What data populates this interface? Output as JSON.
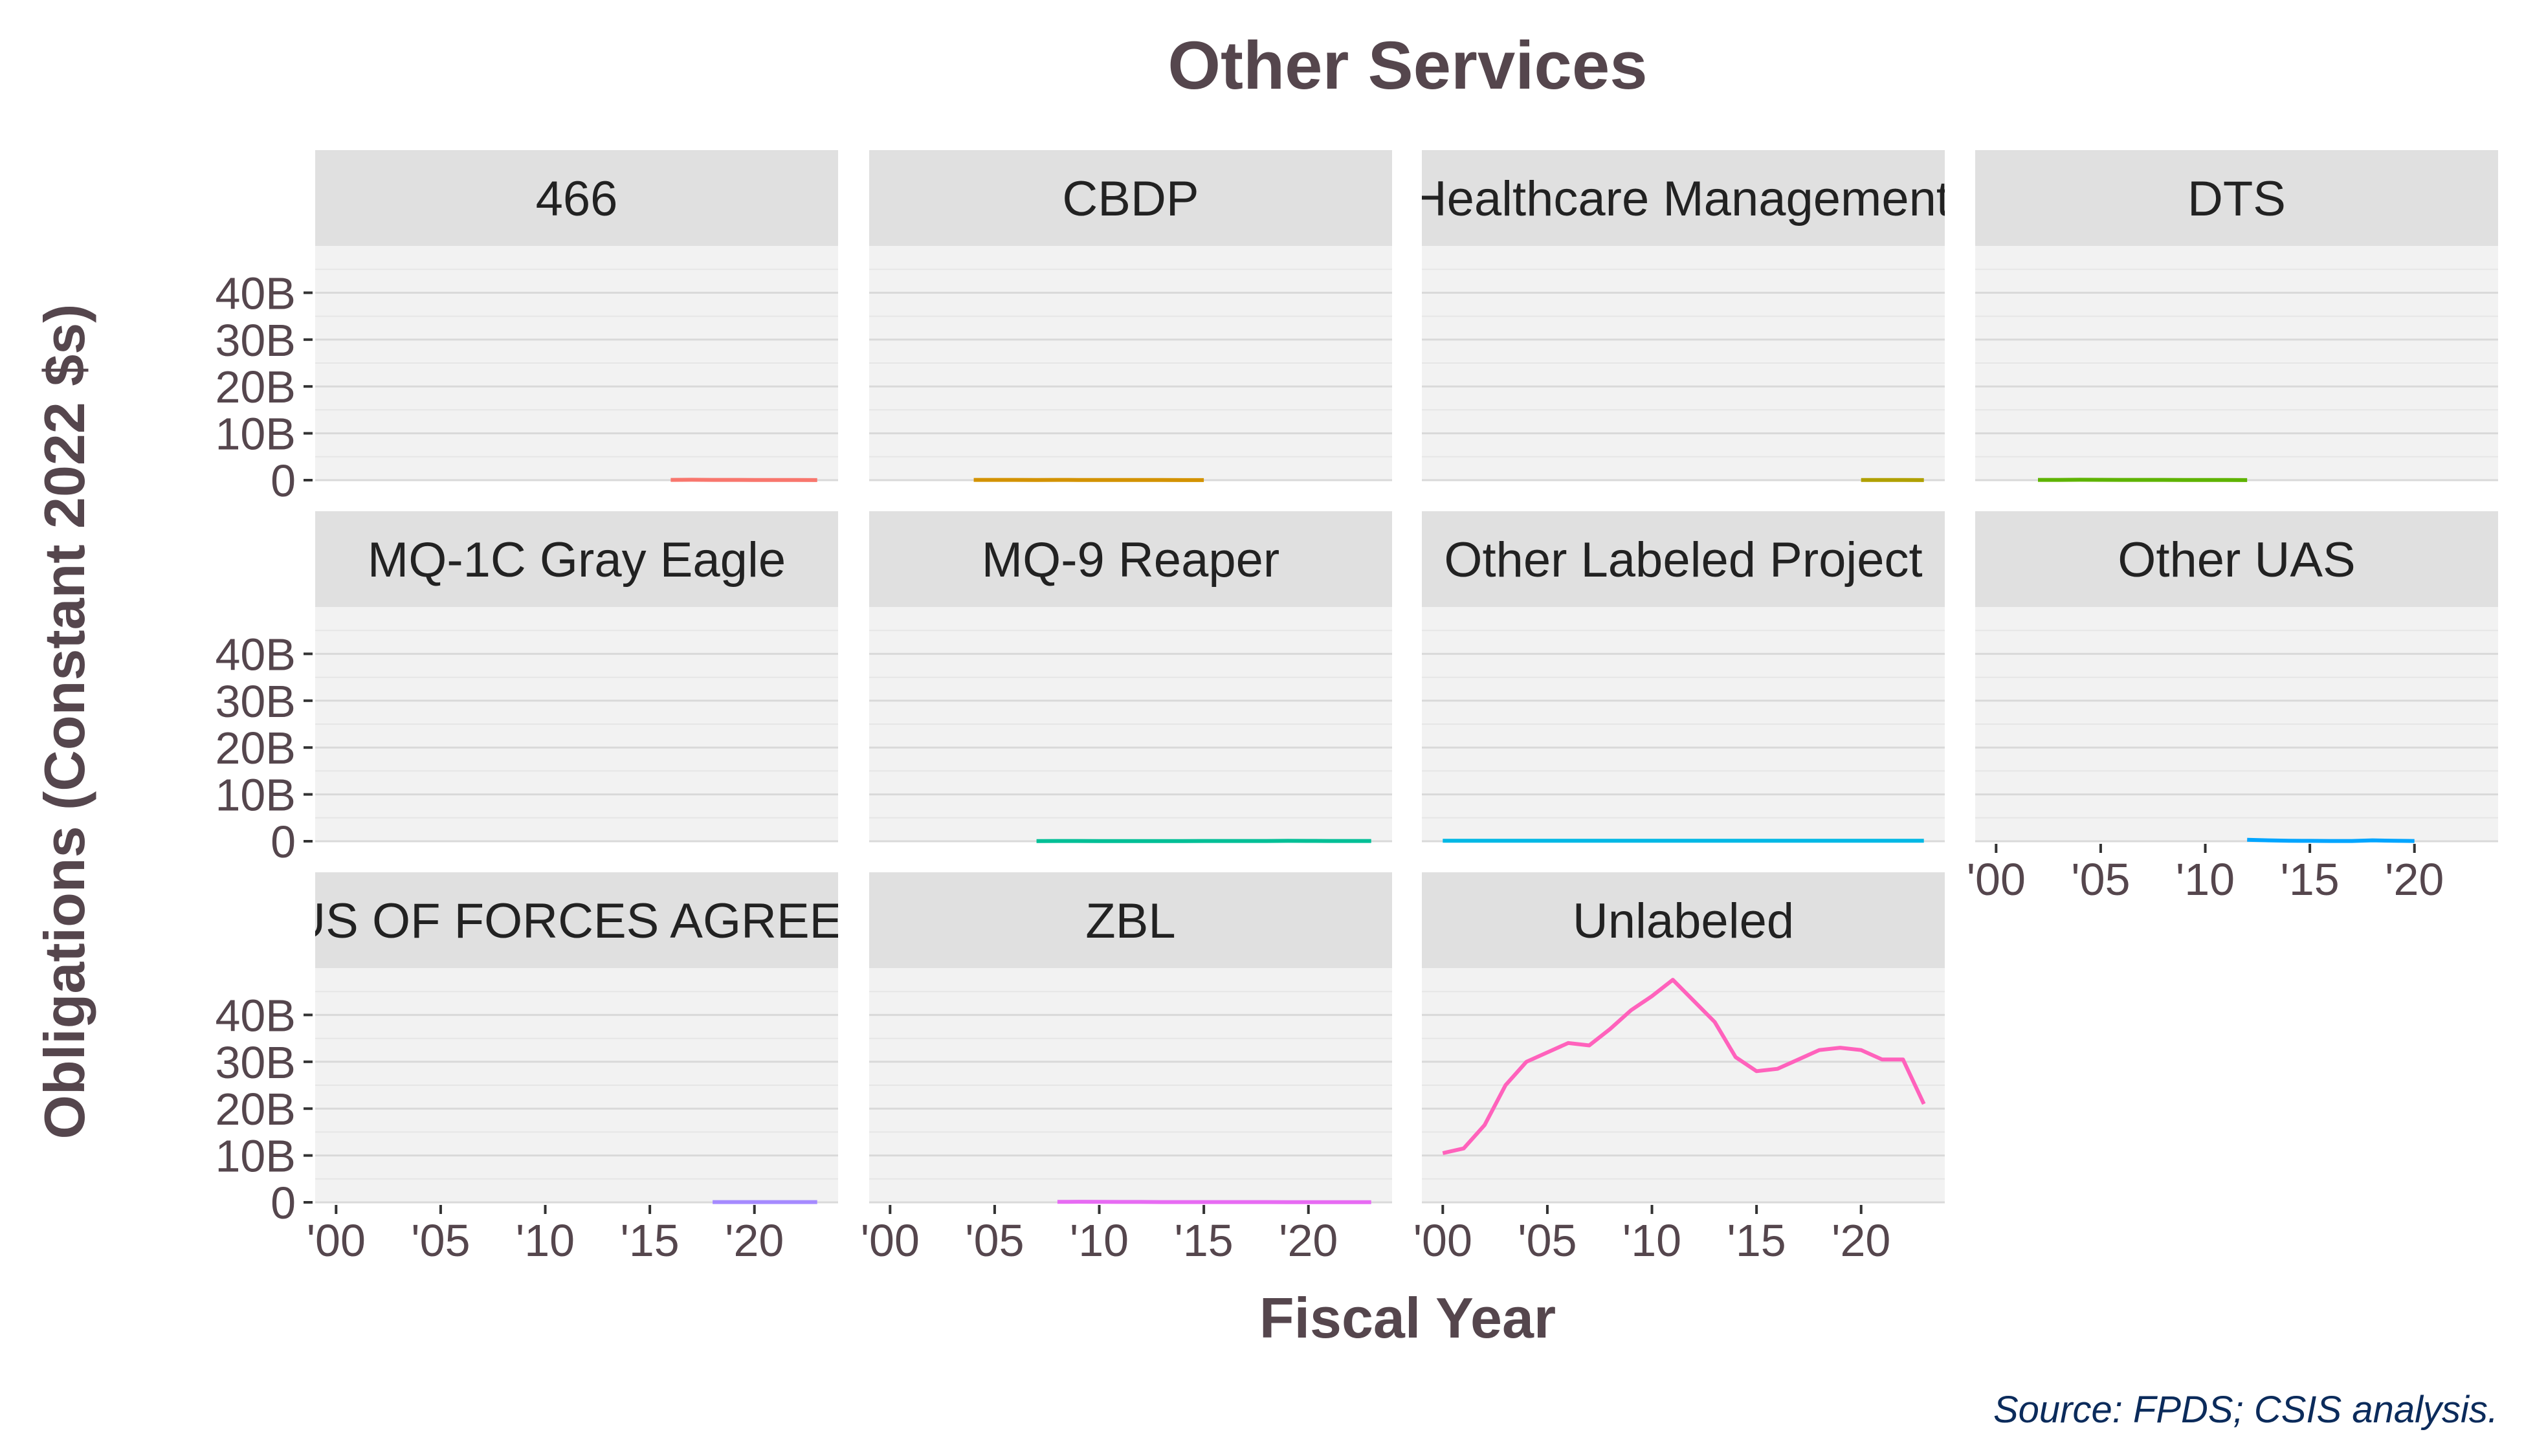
{
  "chart_data": {
    "type": "line",
    "title": "Other Services",
    "xlabel": "Fiscal Year",
    "ylabel": "Obligations (Constant 2022 $s)",
    "caption": "Source: FPDS; CSIS analysis.",
    "xlim": [
      1999,
      2024
    ],
    "ylim": [
      0,
      50
    ],
    "y_ticks": [
      0,
      10,
      20,
      30,
      40
    ],
    "y_tick_labels": [
      "0",
      "10B",
      "20B",
      "30B",
      "40B"
    ],
    "x_ticks": [
      2000,
      2005,
      2010,
      2015,
      2020
    ],
    "x_tick_labels": [
      "'00",
      "'05",
      "'10",
      "'15",
      "'20"
    ],
    "units": "billions of constant 2022 dollars",
    "panels": [
      {
        "label": "466",
        "color": "#f8766d",
        "x": [
          2016,
          2017,
          2018,
          2019,
          2020,
          2021,
          2022,
          2023
        ],
        "values": [
          0.05,
          0.08,
          0.06,
          0.05,
          0.04,
          0.03,
          0.03,
          0.02
        ]
      },
      {
        "label": "CBDP",
        "color": "#d39200",
        "x": [
          2004,
          2005,
          2006,
          2007,
          2008,
          2009,
          2010,
          2011,
          2012,
          2013,
          2014,
          2015
        ],
        "values": [
          0.05,
          0.06,
          0.05,
          0.04,
          0.05,
          0.04,
          0.04,
          0.03,
          0.03,
          0.03,
          0.02,
          0.02
        ]
      },
      {
        "label": "Defense Healthcare Management Systems",
        "color": "#b0a000",
        "x": [
          2020,
          2021,
          2022,
          2023
        ],
        "values": [
          0.03,
          0.03,
          0.03,
          0.02
        ]
      },
      {
        "label": "DTS",
        "color": "#5eb300",
        "x": [
          2002,
          2003,
          2004,
          2005,
          2006,
          2007,
          2008,
          2009,
          2010,
          2011,
          2012
        ],
        "values": [
          0.05,
          0.06,
          0.08,
          0.07,
          0.06,
          0.05,
          0.05,
          0.04,
          0.04,
          0.03,
          0.02
        ]
      },
      {
        "label": "MQ-1C Gray Eagle",
        "color": "#00ba38",
        "x": [],
        "values": []
      },
      {
        "label": "MQ-9 Reaper",
        "color": "#00bf96",
        "x": [
          2007,
          2008,
          2009,
          2010,
          2011,
          2012,
          2013,
          2014,
          2015,
          2016,
          2017,
          2018,
          2019,
          2020,
          2021,
          2022,
          2023
        ],
        "values": [
          0.04,
          0.05,
          0.05,
          0.04,
          0.04,
          0.04,
          0.04,
          0.04,
          0.05,
          0.05,
          0.05,
          0.06,
          0.08,
          0.07,
          0.06,
          0.05,
          0.05
        ]
      },
      {
        "label": "Other Labeled Project",
        "color": "#00b8e5",
        "x": [
          2000,
          2001,
          2002,
          2003,
          2004,
          2005,
          2006,
          2007,
          2008,
          2009,
          2010,
          2011,
          2012,
          2013,
          2014,
          2015,
          2016,
          2017,
          2018,
          2019,
          2020,
          2021,
          2022,
          2023
        ],
        "values": [
          0.1,
          0.1,
          0.1,
          0.1,
          0.1,
          0.1,
          0.1,
          0.1,
          0.1,
          0.1,
          0.1,
          0.1,
          0.1,
          0.1,
          0.1,
          0.1,
          0.1,
          0.1,
          0.1,
          0.1,
          0.1,
          0.1,
          0.1,
          0.1
        ]
      },
      {
        "label": "Other UAS",
        "color": "#00a5ff",
        "x": [
          2012,
          2013,
          2014,
          2015,
          2016,
          2017,
          2018,
          2019,
          2020
        ],
        "values": [
          0.3,
          0.2,
          0.1,
          0.08,
          0.06,
          0.06,
          0.2,
          0.1,
          0.05
        ]
      },
      {
        "label": "STATUS OF FORCES AGREEMENT",
        "color": "#a58aff",
        "x": [
          2018,
          2019,
          2020,
          2021,
          2022,
          2023
        ],
        "values": [
          0.05,
          0.05,
          0.05,
          0.05,
          0.05,
          0.05
        ]
      },
      {
        "label": "ZBL",
        "color": "#e76bf3",
        "x": [
          2008,
          2009,
          2010,
          2011,
          2012,
          2013,
          2014,
          2015,
          2016,
          2017,
          2018,
          2019,
          2020,
          2021,
          2022,
          2023
        ],
        "values": [
          0.1,
          0.12,
          0.1,
          0.08,
          0.08,
          0.06,
          0.05,
          0.05,
          0.06,
          0.05,
          0.05,
          0.04,
          0.04,
          0.03,
          0.03,
          0.03
        ]
      },
      {
        "label": "Unlabeled",
        "color": "#ff62bc",
        "x": [
          2000,
          2001,
          2002,
          2003,
          2004,
          2005,
          2006,
          2007,
          2008,
          2009,
          2010,
          2011,
          2012,
          2013,
          2014,
          2015,
          2016,
          2017,
          2018,
          2019,
          2020,
          2021,
          2022,
          2023
        ],
        "values": [
          10.5,
          11.5,
          16.5,
          25,
          30,
          32,
          34,
          33.5,
          37,
          41,
          44,
          47.5,
          43,
          38.5,
          31,
          28,
          28.5,
          30.5,
          32.5,
          33,
          32.5,
          30.5,
          30.5,
          21
        ]
      }
    ]
  }
}
